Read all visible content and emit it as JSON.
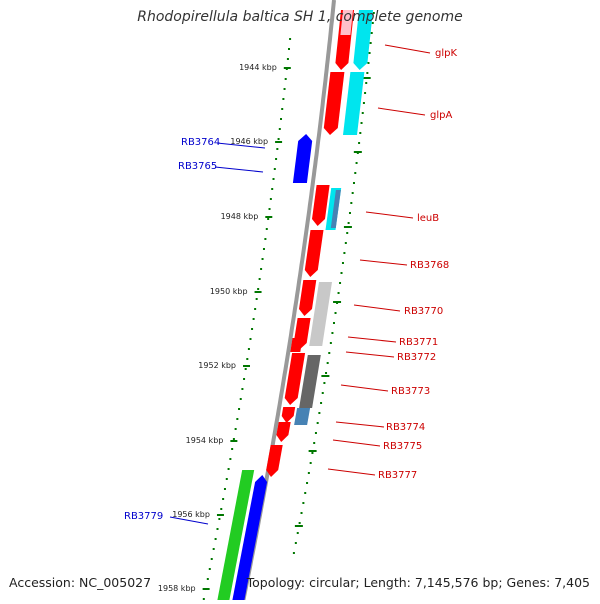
{
  "title": "Rhodopirellula baltica SH 1, complete genome",
  "accession": "Accession: NC_005027",
  "summary": "Topology: circular; Length: 7,145,576 bp; Genes: 7,405",
  "colors": {
    "red": "#ff0000",
    "blue": "#0000ff",
    "cyan": "#00e5ee",
    "green": "#22cc22",
    "light_grey": "#c8c8c8",
    "dark_grey": "#666666",
    "steel_blue": "#4682b4",
    "pink": "#ffc0cb",
    "backbone": "#999999",
    "tick_green": "#007700",
    "label_red": "#cc0000",
    "label_blue": "#0000cc"
  },
  "ticks": [
    {
      "label": "1944 kbp"
    },
    {
      "label": "1946 kbp"
    },
    {
      "label": "1948 kbp"
    },
    {
      "label": "1950 kbp"
    },
    {
      "label": "1952 kbp"
    },
    {
      "label": "1954 kbp"
    },
    {
      "label": "1956 kbp"
    },
    {
      "label": "1958 kbp"
    }
  ],
  "right_labels": [
    {
      "text": "glpK"
    },
    {
      "text": "glpA"
    },
    {
      "text": "leuB"
    },
    {
      "text": "RB3768"
    },
    {
      "text": "RB3770"
    },
    {
      "text": "RB3771"
    },
    {
      "text": "RB3772"
    },
    {
      "text": "RB3773"
    },
    {
      "text": "RB3774"
    },
    {
      "text": "RB3775"
    },
    {
      "text": "RB3777"
    }
  ],
  "left_labels": [
    {
      "text": "RB3764"
    },
    {
      "text": "RB3765"
    },
    {
      "text": "RB3779"
    }
  ]
}
